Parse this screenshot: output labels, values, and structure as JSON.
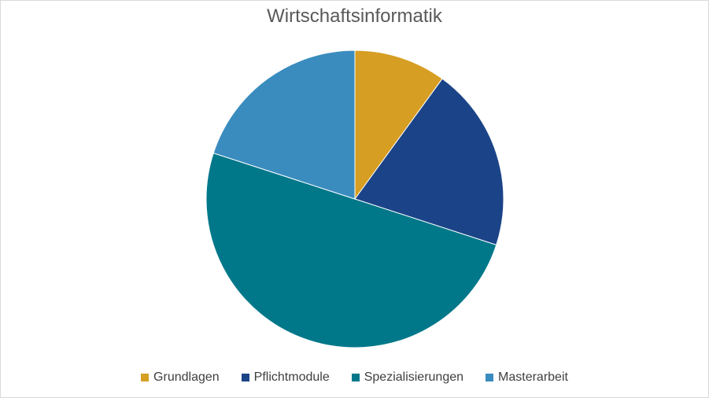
{
  "chart_data": {
    "type": "pie",
    "title": "Wirtschaftsinformatik",
    "categories": [
      "Grundlagen",
      "Pflichtmodule",
      "Spezialisierungen",
      "Masterarbeit"
    ],
    "values": [
      10,
      20,
      50,
      20
    ],
    "colors": [
      "#d69e23",
      "#1b4488",
      "#00788a",
      "#3a8cbf"
    ],
    "legend": "bottom"
  }
}
